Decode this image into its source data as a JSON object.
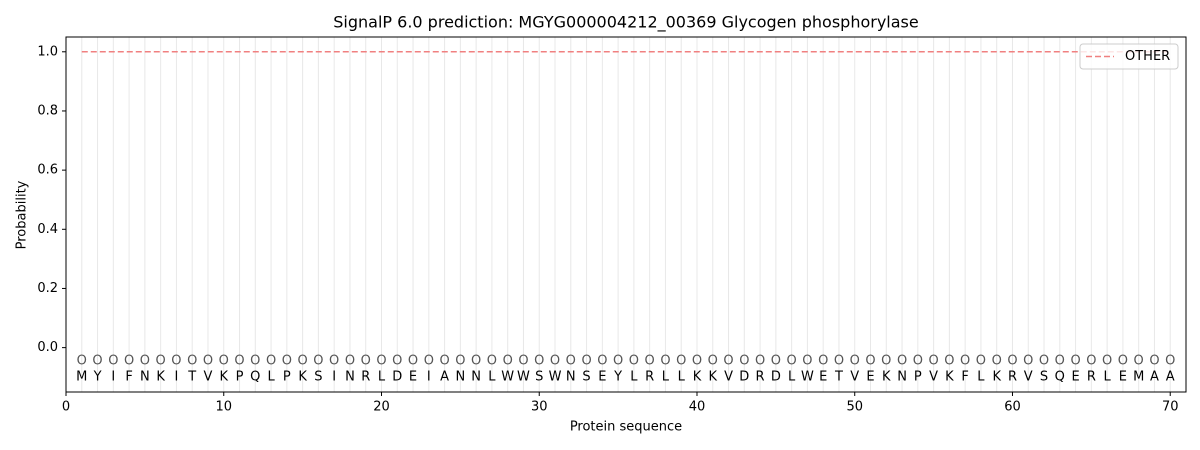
{
  "chart_data": {
    "type": "line",
    "title": "SignalP 6.0 prediction: MGYG000004212_00369 Glycogen phosphorylase",
    "xlabel": "Protein sequence",
    "ylabel": "Probability",
    "x": [
      1,
      2,
      3,
      4,
      5,
      6,
      7,
      8,
      9,
      10,
      11,
      12,
      13,
      14,
      15,
      16,
      17,
      18,
      19,
      20,
      21,
      22,
      23,
      24,
      25,
      26,
      27,
      28,
      29,
      30,
      31,
      32,
      33,
      34,
      35,
      36,
      37,
      38,
      39,
      40,
      41,
      42,
      43,
      44,
      45,
      46,
      47,
      48,
      49,
      50,
      51,
      52,
      53,
      54,
      55,
      56,
      57,
      58,
      59,
      60,
      61,
      62,
      63,
      64,
      65,
      66,
      67,
      68,
      69,
      70
    ],
    "residues": [
      "M",
      "Y",
      "I",
      "F",
      "N",
      "K",
      "I",
      "T",
      "V",
      "K",
      "P",
      "Q",
      "L",
      "P",
      "K",
      "S",
      "I",
      "N",
      "R",
      "L",
      "D",
      "E",
      "I",
      "A",
      "N",
      "N",
      "L",
      "W",
      "W",
      "S",
      "W",
      "N",
      "S",
      "E",
      "Y",
      "L",
      "R",
      "L",
      "L",
      "K",
      "K",
      "V",
      "D",
      "R",
      "D",
      "L",
      "W",
      "E",
      "T",
      "V",
      "E",
      "K",
      "N",
      "P",
      "V",
      "K",
      "F",
      "L",
      "K",
      "R",
      "V",
      "S",
      "Q",
      "E",
      "R",
      "L",
      "E",
      "M",
      "A",
      "A"
    ],
    "predicted_labels": [
      "O",
      "O",
      "O",
      "O",
      "O",
      "O",
      "O",
      "O",
      "O",
      "O",
      "O",
      "O",
      "O",
      "O",
      "O",
      "O",
      "O",
      "O",
      "O",
      "O",
      "O",
      "O",
      "O",
      "O",
      "O",
      "O",
      "O",
      "O",
      "O",
      "O",
      "O",
      "O",
      "O",
      "O",
      "O",
      "O",
      "O",
      "O",
      "O",
      "O",
      "O",
      "O",
      "O",
      "O",
      "O",
      "O",
      "O",
      "O",
      "O",
      "O",
      "O",
      "O",
      "O",
      "O",
      "O",
      "O",
      "O",
      "O",
      "O",
      "O",
      "O",
      "O",
      "O",
      "O",
      "O",
      "O",
      "O",
      "O",
      "O",
      "O"
    ],
    "series": [
      {
        "name": "OTHER",
        "color": "#f08080",
        "values": [
          1,
          1,
          1,
          1,
          1,
          1,
          1,
          1,
          1,
          1,
          1,
          1,
          1,
          1,
          1,
          1,
          1,
          1,
          1,
          1,
          1,
          1,
          1,
          1,
          1,
          1,
          1,
          1,
          1,
          1,
          1,
          1,
          1,
          1,
          1,
          1,
          1,
          1,
          1,
          1,
          1,
          1,
          1,
          1,
          1,
          1,
          1,
          1,
          1,
          1,
          1,
          1,
          1,
          1,
          1,
          1,
          1,
          1,
          1,
          1,
          1,
          1,
          1,
          1,
          1,
          1,
          1,
          1,
          1,
          1
        ]
      }
    ],
    "xlim": [
      0,
      71
    ],
    "ylim": [
      -0.15,
      1.05
    ],
    "xticks": [
      0,
      10,
      20,
      30,
      40,
      50,
      60,
      70
    ],
    "yticks": [
      {
        "value": 0,
        "label": "0.0"
      },
      0.2,
      0.4,
      0.6,
      0.8,
      {
        "value": 1,
        "label": "1.0"
      }
    ],
    "legend": "upper right"
  }
}
